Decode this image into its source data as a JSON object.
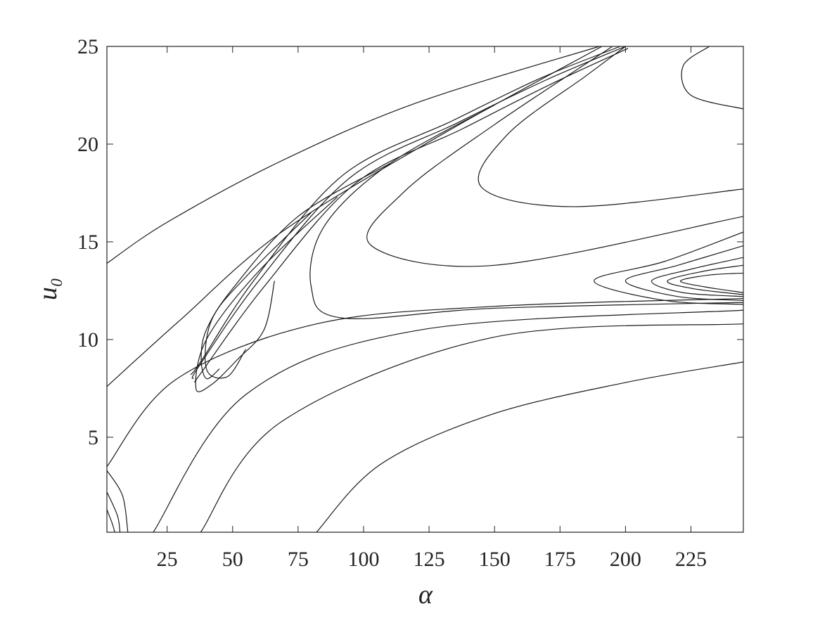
{
  "chart_data": {
    "type": "contour",
    "xlabel": "α",
    "ylabel": "u₀",
    "xlim": [
      2,
      245
    ],
    "ylim": [
      0.14,
      25
    ],
    "xticks": [
      25,
      50,
      75,
      100,
      125,
      150,
      175,
      200,
      225
    ],
    "yticks": [
      5,
      10,
      15,
      20,
      25
    ],
    "color": "#1a1a1a",
    "series": [
      {
        "x": [
          2,
          25,
          68,
          120,
          190
        ],
        "values": [
          13.9,
          16,
          19.1,
          22.1,
          25
        ]
      },
      {
        "x": [
          2,
          30,
          68.7,
          130,
          191
        ],
        "values": [
          7.6,
          11,
          15.5,
          20.5,
          25
        ]
      },
      {
        "x": [
          35,
          37,
          60,
          95,
          136,
          170,
          200
        ],
        "values": [
          8,
          8.6,
          13,
          18.3,
          21.1,
          23.3,
          25
        ]
      },
      {
        "x": [
          36,
          38,
          62,
          97,
          138,
          172,
          201
        ],
        "values": [
          7.9,
          8.3,
          12.7,
          18,
          20.8,
          23.1,
          24.9
        ]
      },
      {
        "x": [
          34,
          38,
          58,
          92,
          134,
          168,
          198
        ],
        "values": [
          8.2,
          8.9,
          13,
          18.4,
          21.2,
          23.4,
          25
        ]
      },
      {
        "x": [
          45,
          40,
          38,
          40,
          50,
          75,
          110
        ],
        "values": [
          8.5,
          8,
          9,
          10.5,
          12.6,
          16.3,
          19
        ]
      },
      {
        "x": [
          55,
          48,
          40,
          42,
          55,
          80
        ],
        "values": [
          9.5,
          8.1,
          8.5,
          11,
          13.2,
          16.5
        ]
      },
      {
        "x": [
          66,
          62,
          52,
          42,
          36,
          40,
          60,
          90
        ],
        "values": [
          13,
          10.5,
          9,
          7.7,
          7.5,
          10,
          13.5,
          17.3
        ]
      },
      {
        "x": [
          2,
          28.3,
          82,
          150,
          245
        ],
        "values": [
          3.5,
          7.95,
          10.8,
          11.7,
          12.1
        ]
      },
      {
        "x": [
          19.7,
          55.2,
          122,
          245
        ],
        "values": [
          0.14,
          7.2,
          10.5,
          11.5
        ]
      },
      {
        "x": [
          37.8,
          68.7,
          149,
          245
        ],
        "values": [
          0.14,
          5.8,
          10.1,
          10.8
        ]
      },
      {
        "x": [
          82,
          106.3,
          148.5,
          200,
          245
        ],
        "values": [
          0.14,
          3.6,
          6.15,
          7.8,
          8.85
        ]
      },
      {
        "x": [
          245,
          150,
          92,
          80,
          85,
          110,
          150
        ],
        "values": [
          11.9,
          11.6,
          11.1,
          12.7,
          15.8,
          19,
          22
        ]
      },
      {
        "x": [
          245,
          150,
          103,
          115,
          150,
          195
        ],
        "values": [
          16.3,
          13.8,
          14.8,
          17.5,
          21,
          25
        ]
      },
      {
        "x": [
          245,
          180,
          145,
          155,
          185,
          200
        ],
        "values": [
          17.7,
          16.8,
          17.8,
          20.5,
          23.5,
          25
        ]
      },
      {
        "x": [
          245,
          225,
          222,
          232
        ],
        "values": [
          21.8,
          22.5,
          24,
          25
        ]
      },
      {
        "x": [
          245,
          215,
          188,
          215,
          245
        ],
        "values": [
          15.5,
          14,
          13,
          12,
          11.8
        ]
      },
      {
        "x": [
          245,
          220,
          200,
          220,
          245
        ],
        "values": [
          14.8,
          13.8,
          13,
          12.2,
          12
        ]
      },
      {
        "x": [
          245,
          225,
          210,
          222,
          245
        ],
        "values": [
          14.2,
          13.6,
          13,
          12.4,
          12.2
        ]
      },
      {
        "x": [
          245,
          230,
          216,
          226,
          245
        ],
        "values": [
          13.8,
          13.5,
          13,
          12.6,
          12.3
        ]
      },
      {
        "x": [
          245,
          232,
          221,
          230,
          245
        ],
        "values": [
          13.4,
          13.3,
          13,
          12.7,
          12.4
        ]
      },
      {
        "x": [
          2,
          8,
          10
        ],
        "values": [
          3.3,
          2,
          0.14
        ]
      },
      {
        "x": [
          2,
          6,
          7
        ],
        "values": [
          2.2,
          1,
          0.14
        ]
      },
      {
        "x": [
          2,
          4,
          5
        ],
        "values": [
          1.3,
          0.6,
          0.14
        ]
      }
    ]
  }
}
